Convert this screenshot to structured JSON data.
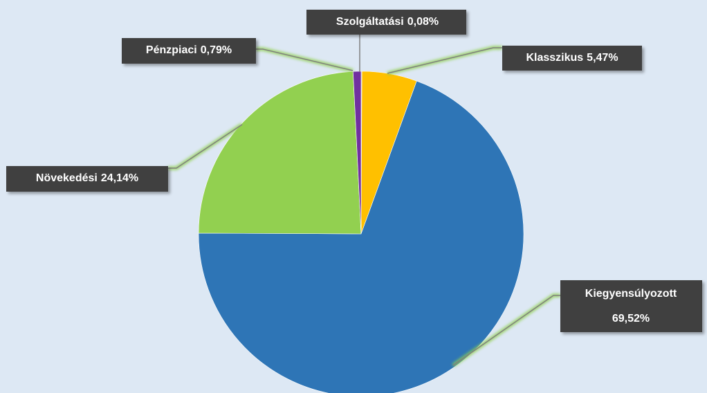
{
  "chart_data": {
    "type": "pie",
    "categories": [
      "Szolgáltatási",
      "Klasszikus",
      "Kiegyensúlyozott",
      "Növekedési",
      "Pénzpiaci"
    ],
    "values": [
      0.08,
      5.47,
      69.52,
      24.14,
      0.79
    ],
    "value_labels": [
      "0,08%",
      "5,47%",
      "69,52%",
      "24,14%",
      "0,79%"
    ],
    "colors": [
      "#a5a5a5",
      "#ffc000",
      "#2e75b6",
      "#92d050",
      "#7030a0"
    ]
  }
}
